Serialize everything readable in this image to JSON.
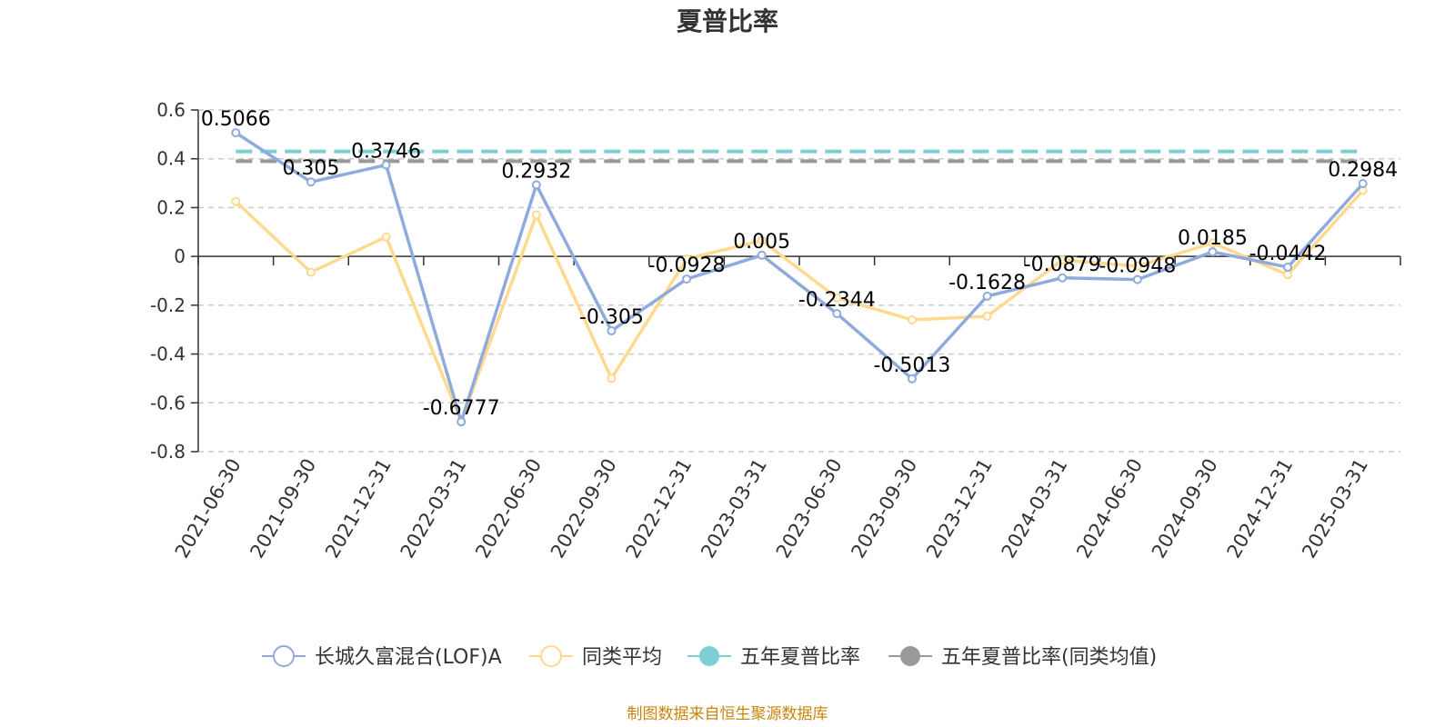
{
  "chart_data": {
    "type": "line",
    "title": "夏普比率",
    "categories": [
      "2021-06-30",
      "2021-09-30",
      "2021-12-31",
      "2022-03-31",
      "2022-06-30",
      "2022-09-30",
      "2022-12-31",
      "2023-03-31",
      "2023-06-30",
      "2023-09-30",
      "2023-12-31",
      "2024-03-31",
      "2024-06-30",
      "2024-09-30",
      "2024-12-31",
      "2025-03-31"
    ],
    "ylim": [
      -0.8,
      0.6
    ],
    "yticks": [
      0.6,
      0.4,
      0.2,
      0,
      -0.2,
      -0.4,
      -0.6,
      -0.8
    ],
    "ytick_labels": [
      "0.6",
      "0.4",
      "0.2",
      "0",
      "-0.2",
      "-0.4",
      "-0.6",
      "-0.8"
    ],
    "grid": true,
    "legend_position": "bottom",
    "series": [
      {
        "name": "长城久富混合(LOF)A",
        "color": "#8faadc",
        "values": [
          0.5066,
          0.305,
          0.3746,
          -0.6777,
          0.2932,
          -0.305,
          -0.0928,
          0.005,
          -0.2344,
          -0.5013,
          -0.1628,
          -0.0879,
          -0.0948,
          0.0185,
          -0.0442,
          0.2984
        ],
        "labels": [
          "0.5066",
          "0.305",
          "0.3746",
          "-0.6777",
          "0.2932",
          "-0.305",
          "-0.0928",
          "0.005",
          "-0.2344",
          "-0.5013",
          "-0.1628",
          "-0.0879",
          "-0.0948",
          "0.0185",
          "-0.0442",
          "0.2984"
        ]
      },
      {
        "name": "同类平均",
        "color": "#ffd98e",
        "values": [
          0.225,
          -0.065,
          0.08,
          -0.675,
          0.17,
          -0.5,
          -0.01,
          0.065,
          -0.17,
          -0.26,
          -0.245,
          -0.015,
          -0.04,
          0.055,
          -0.075,
          0.27
        ]
      },
      {
        "name": "五年夏普比率",
        "color": "#7ecfd4",
        "value": 0.43
      },
      {
        "name": "五年夏普比率(同类均值)",
        "color": "#999999",
        "value": 0.39
      }
    ],
    "source": "制图数据来自恒生聚源数据库"
  }
}
